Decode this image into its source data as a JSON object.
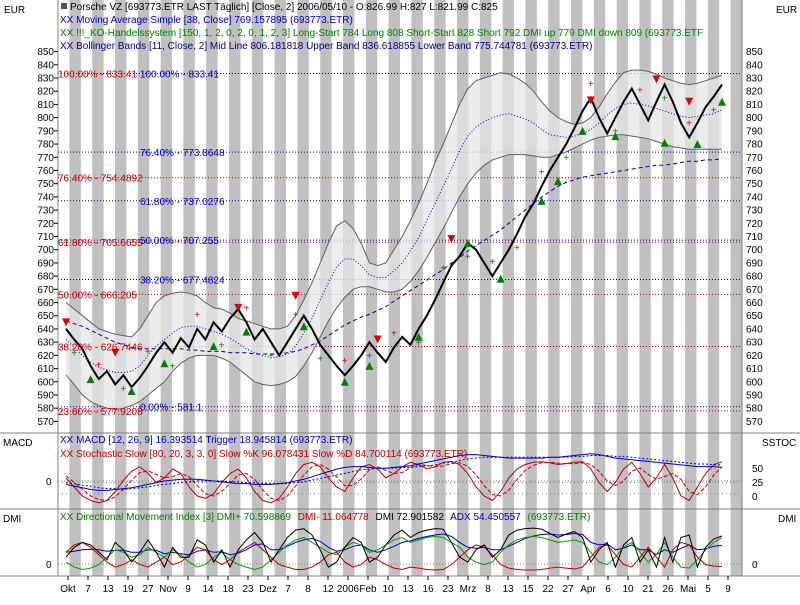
{
  "chart_data": {
    "type": "line",
    "currency_label": "EUR",
    "title": "Porsche VZ [693773.ETR LAST Täglich] [Close, 2] 2006/05/10 - O:826.99 H:827 L:821.99 C:825",
    "legend": [
      {
        "text": "XX Moving Average Simple [38, Close] 769.157895 (693773.ETR)",
        "color": "#0000c0"
      },
      {
        "text": "XX !!!_KO-Handelssystem [150, 1, 2, 0, 2, 0, 1, 2, 3] Long-Start 784 Long 808 Short-Start 828 Short 792 DMI up 779 DMI down 809 (693773.ETF",
        "color": "#008000"
      },
      {
        "text": "XX Bollinger Bands [11, Close, 2] Mid Line 806.181818 Upper Band 836.618855 Lower Band 775.744781 (693773.ETR)",
        "color": "#000080"
      }
    ],
    "y_ticks": [
      850,
      840,
      830,
      820,
      810,
      800,
      790,
      780,
      770,
      760,
      750,
      740,
      730,
      720,
      710,
      700,
      690,
      680,
      670,
      660,
      650,
      640,
      630,
      620,
      610,
      600,
      590,
      580,
      570
    ],
    "ylim": [
      565,
      855
    ],
    "fib_red": [
      {
        "label": "100.00% - 833.41",
        "value": 833.41
      },
      {
        "label": "76.40% - 754.4892",
        "value": 754.4892
      },
      {
        "label": "61.80% - 705.6655",
        "value": 705.6655
      },
      {
        "label": "50.00% - 666.205",
        "value": 666.205
      },
      {
        "label": "38.20% - 626.7446",
        "value": 626.7446
      },
      {
        "label": "23.60% - 577.9208",
        "value": 577.9208
      }
    ],
    "fib_blue": [
      {
        "label": "100.00% - 833.41",
        "value": 833.41
      },
      {
        "label": "76.40% - 773.8648",
        "value": 773.8648
      },
      {
        "label": "61.80% - 737.0276",
        "value": 737.0276
      },
      {
        "label": "50.00% - 707.255",
        "value": 707.255
      },
      {
        "label": "38.20% - 677.4824",
        "value": 677.4824
      },
      {
        "label": "0.00% - 581.1",
        "value": 581.1
      }
    ],
    "x_labels": [
      "Okt",
      "7",
      "13",
      "19",
      "27",
      "Nov",
      "9",
      "14",
      "18",
      "23",
      "Dez",
      "7",
      "8",
      "12",
      "2006",
      "Feb",
      "10",
      "13",
      "16",
      "23",
      "Mrz",
      "8",
      "13",
      "15",
      "22",
      "27",
      "Apr",
      "6",
      "10",
      "21",
      "26",
      "Mai",
      "5",
      "9"
    ],
    "price_series": [
      {
        "name": "Close",
        "color": "#000000",
        "values": [
          640,
          632,
          625,
          612,
          602,
          608,
          598,
          605,
          596,
          603,
          612,
          622,
          630,
          622,
          633,
          626,
          640,
          632,
          645,
          638,
          648,
          655,
          645,
          632,
          640,
          630,
          620,
          630,
          640,
          650,
          640,
          628,
          620,
          612,
          605,
          612,
          620,
          630,
          622,
          615,
          626,
          634,
          628,
          640,
          650,
          662,
          675,
          688,
          695,
          705,
          700,
          690,
          680,
          690,
          700,
          712,
          725,
          735,
          748,
          760,
          770,
          780,
          792,
          805,
          815,
          800,
          788,
          800,
          812,
          822,
          810,
          798,
          812,
          825,
          812,
          796,
          785,
          796,
          808,
          816,
          825
        ]
      },
      {
        "name": "Upper Band",
        "color": "#606060",
        "values": [
          660,
          655,
          650,
          645,
          640,
          638,
          636,
          635,
          634,
          640,
          650,
          660,
          665,
          667,
          668,
          667,
          665,
          660,
          656,
          655,
          652,
          648,
          646,
          644,
          642,
          640,
          640,
          642,
          650,
          662,
          675,
          690,
          705,
          718,
          722,
          716,
          705,
          690,
          688,
          690,
          700,
          710,
          722,
          735,
          750,
          766,
          780,
          795,
          810,
          822,
          828,
          830,
          832,
          834,
          833,
          830,
          826,
          820,
          812,
          805,
          800,
          797,
          795,
          796,
          800,
          808,
          818,
          827,
          834,
          836,
          836,
          835,
          833,
          830,
          828,
          826,
          825,
          826,
          828,
          830,
          832
        ]
      },
      {
        "name": "Lower Band",
        "color": "#606060",
        "values": [
          605,
          598,
          590,
          585,
          582,
          580,
          579,
          580,
          582,
          585,
          590,
          595,
          600,
          608,
          614,
          618,
          620,
          620,
          620,
          618,
          615,
          610,
          605,
          600,
          598,
          597,
          598,
          600,
          604,
          612,
          622,
          634,
          646,
          656,
          664,
          670,
          672,
          672,
          670,
          668,
          668,
          670,
          676,
          684,
          694,
          705,
          716,
          728,
          740,
          750,
          758,
          764,
          768,
          770,
          772,
          772,
          772,
          771,
          770,
          770,
          772,
          774,
          777,
          780,
          783,
          785,
          786,
          787,
          787,
          786,
          785,
          784,
          782,
          780,
          778,
          777,
          776,
          776,
          776,
          776,
          776
        ]
      },
      {
        "name": "Mid Line",
        "color": "#0000c0",
        "values": [
          632,
          626,
          620,
          615,
          611,
          609,
          607,
          607,
          608,
          612,
          620,
          627,
          632,
          637,
          641,
          642,
          642,
          640,
          638,
          636,
          633,
          629,
          625,
          622,
          620,
          618,
          619,
          621,
          627,
          637,
          648,
          662,
          675,
          687,
          693,
          693,
          688,
          681,
          679,
          679,
          684,
          690,
          699,
          709,
          722,
          735,
          748,
          761,
          775,
          786,
          793,
          797,
          800,
          802,
          803,
          801,
          799,
          796,
          791,
          787,
          786,
          785,
          786,
          788,
          791,
          796,
          802,
          807,
          810,
          811,
          810,
          809,
          807,
          805,
          803,
          801,
          800,
          801,
          802,
          803,
          806
        ]
      },
      {
        "name": "Moving Average Simple",
        "color": "#0000a0",
        "values": [
          646,
          644,
          642,
          639,
          636,
          633,
          630,
          628,
          626,
          625,
          625,
          625,
          625,
          625,
          625,
          624,
          624,
          623,
          623,
          623,
          622,
          622,
          622,
          621,
          621,
          621,
          621,
          622,
          623,
          625,
          628,
          631,
          635,
          639,
          643,
          646,
          649,
          651,
          654,
          657,
          661,
          665,
          669,
          673,
          677,
          681,
          685,
          690,
          694,
          699,
          703,
          707,
          711,
          715,
          720,
          725,
          730,
          735,
          740,
          744,
          748,
          751,
          753,
          755,
          756,
          757,
          758,
          759,
          760,
          761,
          762,
          763,
          764,
          764,
          765,
          766,
          767,
          767,
          768,
          768,
          769
        ]
      }
    ],
    "signals_up": [
      [
        3,
        602
      ],
      [
        8,
        593
      ],
      [
        12,
        614
      ],
      [
        18,
        627
      ],
      [
        22,
        638
      ],
      [
        29,
        642
      ],
      [
        34,
        600
      ],
      [
        37,
        612
      ],
      [
        43,
        634
      ],
      [
        49,
        705
      ],
      [
        53,
        678
      ],
      [
        58,
        737
      ],
      [
        60,
        752
      ],
      [
        63,
        790
      ],
      [
        67,
        786
      ],
      [
        73,
        781
      ],
      [
        77,
        780
      ],
      [
        80,
        812
      ]
    ],
    "signals_down": [
      [
        0,
        645
      ],
      [
        6,
        622
      ],
      [
        21,
        656
      ],
      [
        28,
        665
      ],
      [
        38,
        632
      ],
      [
        47,
        708
      ],
      [
        64,
        813
      ],
      [
        72,
        829
      ],
      [
        76,
        812
      ]
    ],
    "macd_panel": {
      "label_left": "MACD",
      "label_right": "SSTOC",
      "legend": [
        {
          "text": "XX MACD [12, 26, 9] 16.393514 Trigger 18.945814 (693773.ETR)",
          "color": "#0000c0"
        },
        {
          "text": "XX Stochastic Slow [80, 20, 3, 3, 0] Slow %K 96.078431 Slow %D 84.700114 (693773.ETR)",
          "color": "#c00000"
        }
      ],
      "left_ticks": [
        "0"
      ],
      "right_ticks": [
        "50",
        "25",
        "0"
      ],
      "macd": [
        -4,
        -6,
        -8,
        -10,
        -11,
        -11,
        -10,
        -9,
        -8,
        -6,
        -4,
        -2,
        0,
        1,
        2,
        2,
        2,
        1,
        0,
        -1,
        -2,
        -3,
        -3,
        -4,
        -4,
        -4,
        -3,
        -2,
        0,
        2,
        5,
        8,
        11,
        14,
        16,
        17,
        17,
        16,
        15,
        15,
        16,
        17,
        18,
        20,
        22,
        24,
        26,
        28,
        30,
        31,
        31,
        30,
        29,
        28,
        27,
        27,
        27,
        27,
        27,
        28,
        28,
        29,
        30,
        31,
        32,
        31,
        29,
        27,
        26,
        25,
        24,
        23,
        22,
        21,
        20,
        19,
        18,
        17,
        17,
        17,
        16
      ],
      "trigger": [
        -2,
        -3,
        -5,
        -6,
        -8,
        -9,
        -9,
        -10,
        -9,
        -8,
        -7,
        -5,
        -4,
        -3,
        -2,
        -1,
        0,
        0,
        0,
        0,
        -1,
        -1,
        -2,
        -2,
        -3,
        -3,
        -3,
        -3,
        -2,
        -1,
        1,
        3,
        5,
        7,
        9,
        11,
        13,
        14,
        15,
        15,
        15,
        16,
        16,
        17,
        18,
        19,
        21,
        22,
        24,
        26,
        27,
        28,
        28,
        28,
        28,
        28,
        28,
        28,
        28,
        28,
        28,
        28,
        29,
        29,
        30,
        30,
        30,
        29,
        29,
        28,
        27,
        26,
        25,
        24,
        23,
        22,
        21,
        20,
        20,
        19,
        19
      ],
      "stoch_k": [
        60,
        40,
        20,
        10,
        5,
        10,
        30,
        55,
        75,
        85,
        70,
        50,
        60,
        80,
        70,
        40,
        20,
        15,
        25,
        50,
        70,
        80,
        60,
        30,
        10,
        5,
        15,
        40,
        70,
        90,
        95,
        85,
        60,
        40,
        30,
        60,
        85,
        90,
        80,
        60,
        70,
        85,
        95,
        90,
        80,
        85,
        95,
        97,
        90,
        70,
        40,
        20,
        10,
        30,
        60,
        80,
        90,
        95,
        96,
        94,
        90,
        92,
        95,
        96,
        80,
        50,
        30,
        50,
        80,
        95,
        70,
        40,
        60,
        90,
        60,
        20,
        10,
        40,
        70,
        90,
        96
      ],
      "stoch_d": [
        65,
        50,
        35,
        20,
        12,
        10,
        18,
        35,
        55,
        72,
        76,
        68,
        60,
        63,
        70,
        63,
        43,
        25,
        20,
        30,
        48,
        67,
        70,
        57,
        33,
        15,
        10,
        20,
        42,
        67,
        85,
        90,
        80,
        62,
        43,
        43,
        58,
        78,
        85,
        77,
        70,
        72,
        83,
        90,
        88,
        85,
        87,
        92,
        94,
        86,
        67,
        43,
        23,
        20,
        33,
        57,
        77,
        88,
        94,
        95,
        93,
        92,
        92,
        94,
        90,
        75,
        53,
        43,
        53,
        75,
        82,
        68,
        57,
        63,
        70,
        57,
        30,
        23,
        40,
        67,
        85
      ]
    },
    "dmi_panel": {
      "label_left": "DMI",
      "label_right": "DMI",
      "legend": [
        {
          "text": "XX Directional Movement Index [3] DMI+ 70.598869",
          "color": "#008000"
        },
        {
          "text": "DMI- 11.064778",
          "color": "#c00000"
        },
        {
          "text": "DMI 72.901582",
          "color": "#000000"
        },
        {
          "text": "ADX 54.450557",
          "color": "#0000c0"
        },
        {
          "text": "(693773.ETR)",
          "color": "#008000"
        }
      ],
      "left_ticks": [
        "0"
      ],
      "right_ticks": [
        "0"
      ],
      "dmi_plus": [
        20,
        10,
        5,
        8,
        15,
        30,
        45,
        40,
        30,
        35,
        50,
        40,
        30,
        45,
        35,
        20,
        10,
        15,
        30,
        40,
        25,
        15,
        10,
        5,
        10,
        25,
        40,
        55,
        65,
        70,
        60,
        50,
        40,
        35,
        50,
        60,
        55,
        40,
        45,
        55,
        65,
        70,
        60,
        65,
        70,
        72,
        70,
        60,
        50,
        30,
        20,
        15,
        20,
        40,
        55,
        65,
        70,
        72,
        70,
        65,
        60,
        62,
        65,
        60,
        40,
        20,
        15,
        30,
        50,
        60,
        40,
        20,
        35,
        60,
        30,
        10,
        8,
        25,
        45,
        60,
        70
      ],
      "dmi_minus": [
        40,
        55,
        60,
        50,
        35,
        20,
        10,
        15,
        25,
        15,
        10,
        20,
        30,
        15,
        20,
        35,
        50,
        45,
        25,
        15,
        25,
        40,
        50,
        60,
        45,
        30,
        15,
        10,
        5,
        5,
        10,
        20,
        35,
        40,
        20,
        10,
        15,
        30,
        25,
        15,
        8,
        5,
        10,
        8,
        5,
        4,
        5,
        15,
        30,
        45,
        55,
        50,
        35,
        15,
        8,
        5,
        4,
        4,
        5,
        8,
        10,
        8,
        6,
        10,
        30,
        50,
        55,
        35,
        15,
        10,
        30,
        50,
        30,
        10,
        45,
        60,
        55,
        30,
        15,
        12,
        11
      ],
      "dmi": [
        30,
        50,
        60,
        55,
        40,
        25,
        60,
        45,
        20,
        40,
        65,
        40,
        10,
        50,
        30,
        30,
        65,
        55,
        20,
        45,
        10,
        45,
        65,
        80,
        60,
        20,
        45,
        70,
        85,
        88,
        75,
        45,
        10,
        20,
        50,
        70,
        60,
        20,
        30,
        55,
        75,
        85,
        70,
        80,
        85,
        88,
        87,
        60,
        30,
        20,
        45,
        55,
        30,
        45,
        75,
        85,
        88,
        89,
        87,
        78,
        70,
        77,
        82,
        70,
        20,
        45,
        60,
        10,
        55,
        70,
        20,
        45,
        10,
        70,
        20,
        70,
        75,
        10,
        50,
        67,
        73
      ],
      "adx": [
        40,
        42,
        45,
        46,
        45,
        42,
        44,
        44,
        40,
        40,
        45,
        44,
        37,
        40,
        37,
        35,
        42,
        45,
        40,
        41,
        35,
        38,
        45,
        55,
        57,
        45,
        45,
        52,
        60,
        65,
        68,
        62,
        50,
        42,
        45,
        52,
        55,
        45,
        40,
        45,
        52,
        60,
        63,
        68,
        72,
        75,
        77,
        72,
        60,
        50,
        48,
        50,
        45,
        45,
        52,
        60,
        68,
        73,
        76,
        77,
        75,
        76,
        78,
        76,
        60,
        55,
        57,
        45,
        48,
        55,
        45,
        45,
        35,
        45,
        40,
        48,
        55,
        45,
        47,
        52,
        54
      ]
    },
    "colors": {
      "stripe": "#c0c0c0",
      "band_fill": "#e6e6e6",
      "fib_red": "#c00000",
      "fib_blue": "#0000c0",
      "signal_up": "#008000",
      "signal_down": "#e00000",
      "plus_marker": "#008000",
      "plus_marker_red": "#e00000"
    }
  }
}
